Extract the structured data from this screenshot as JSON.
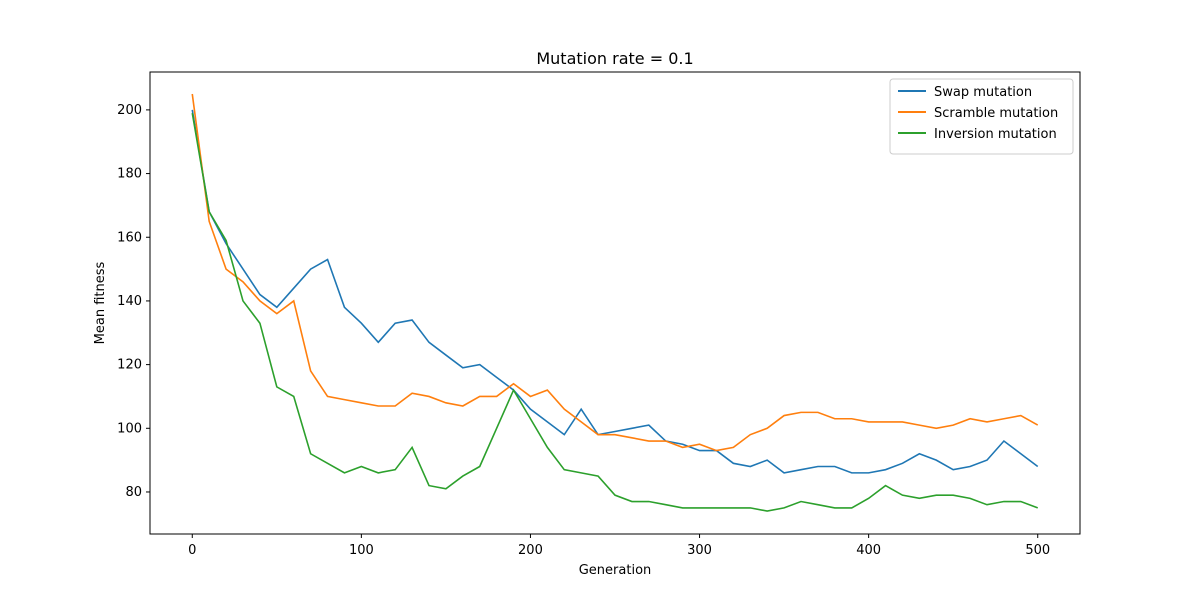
{
  "chart_data": {
    "type": "line",
    "title": "Mutation rate = 0.1",
    "x_label": "Generation",
    "y_label": "Mean fitness",
    "x": [
      0,
      10,
      20,
      30,
      40,
      50,
      60,
      70,
      80,
      90,
      100,
      110,
      120,
      130,
      140,
      150,
      160,
      170,
      180,
      190,
      200,
      210,
      220,
      230,
      240,
      250,
      260,
      270,
      280,
      290,
      300,
      310,
      320,
      330,
      340,
      350,
      360,
      370,
      380,
      390,
      400,
      410,
      420,
      430,
      440,
      450,
      460,
      470,
      480,
      490,
      500
    ],
    "series": [
      {
        "name": "Swap mutation",
        "color": "#1f77b4",
        "values": [
          200,
          168,
          158,
          150,
          142,
          138,
          144,
          150,
          153,
          138,
          133,
          127,
          133,
          134,
          127,
          123,
          119,
          120,
          116,
          112,
          106,
          102,
          98,
          106,
          98,
          99,
          100,
          101,
          96,
          95,
          93,
          93,
          89,
          88,
          90,
          86,
          87,
          88,
          88,
          86,
          86,
          87,
          89,
          92,
          90,
          87,
          88,
          90,
          96,
          92,
          88
        ]
      },
      {
        "name": "Scramble mutation",
        "color": "#ff7f0e",
        "values": [
          205,
          165,
          150,
          146,
          140,
          136,
          140,
          118,
          110,
          109,
          108,
          107,
          107,
          111,
          110,
          108,
          107,
          110,
          110,
          114,
          110,
          112,
          106,
          102,
          98,
          98,
          97,
          96,
          96,
          94,
          95,
          93,
          94,
          98,
          100,
          104,
          105,
          105,
          103,
          103,
          102,
          102,
          102,
          101,
          100,
          101,
          103,
          102,
          103,
          104,
          101
        ]
      },
      {
        "name": "Inversion mutation",
        "color": "#2ca02c",
        "values": [
          199,
          168,
          159,
          140,
          133,
          113,
          110,
          92,
          89,
          86,
          88,
          86,
          87,
          94,
          82,
          81,
          85,
          88,
          100,
          112,
          103,
          94,
          87,
          86,
          85,
          79,
          77,
          77,
          76,
          75,
          75,
          75,
          75,
          75,
          74,
          75,
          77,
          76,
          75,
          75,
          78,
          82,
          79,
          78,
          79,
          79,
          78,
          76,
          77,
          77,
          75
        ]
      }
    ],
    "xlim": [
      -25,
      525
    ],
    "ylim": [
      66.8,
      211.9
    ],
    "xticks": [
      0,
      100,
      200,
      300,
      400,
      500
    ],
    "yticks": [
      80,
      100,
      120,
      140,
      160,
      180,
      200
    ],
    "legend": "upper right"
  }
}
